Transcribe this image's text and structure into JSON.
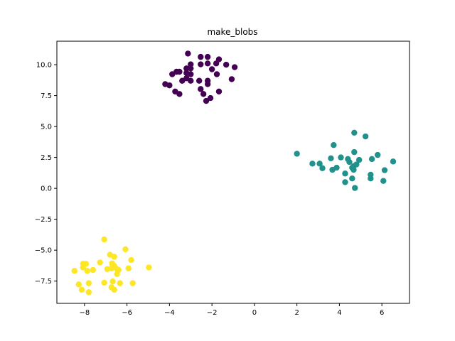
{
  "chart_data": {
    "type": "scatter",
    "title": "make_blobs",
    "xlabel": "",
    "ylabel": "",
    "xlim": [
      -9.3,
      7.3
    ],
    "ylim": [
      -9.3,
      11.9
    ],
    "xticks": [
      -8,
      -6,
      -4,
      -2,
      0,
      2,
      4,
      6
    ],
    "yticks": [
      -7.5,
      -5.0,
      -2.5,
      0.0,
      2.5,
      5.0,
      7.5,
      10.0
    ],
    "xtick_labels": [
      "−8",
      "−6",
      "−4",
      "−2",
      "0",
      "2",
      "4",
      "6"
    ],
    "ytick_labels": [
      "−7.5",
      "−5.0",
      "−2.5",
      "0.0",
      "2.5",
      "5.0",
      "7.5",
      "10.0"
    ],
    "grid": false,
    "legend": "none",
    "series": [
      {
        "color": "#440154",
        "points": [
          [
            -3.13,
            10.9
          ],
          [
            -2.53,
            10.63
          ],
          [
            -2.2,
            10.63
          ],
          [
            -1.67,
            10.43
          ],
          [
            -1.33,
            10.0
          ],
          [
            -0.93,
            9.8
          ],
          [
            -2.53,
            10.03
          ],
          [
            -2.2,
            10.1
          ],
          [
            -1.8,
            10.1
          ],
          [
            -3.0,
            10.03
          ],
          [
            -3.2,
            9.7
          ],
          [
            -3.0,
            9.7
          ],
          [
            -2.0,
            9.63
          ],
          [
            -1.77,
            9.23
          ],
          [
            -3.67,
            9.43
          ],
          [
            -3.87,
            9.23
          ],
          [
            -3.53,
            9.43
          ],
          [
            -3.2,
            9.33
          ],
          [
            -3.0,
            9.23
          ],
          [
            -3.2,
            8.9
          ],
          [
            -3.0,
            8.7
          ],
          [
            -3.4,
            8.7
          ],
          [
            -2.6,
            8.7
          ],
          [
            -2.2,
            8.7
          ],
          [
            -2.2,
            8.43
          ],
          [
            -1.07,
            8.83
          ],
          [
            -4.2,
            8.43
          ],
          [
            -4.0,
            8.33
          ],
          [
            -3.73,
            7.83
          ],
          [
            -3.53,
            7.63
          ],
          [
            -2.53,
            8.03
          ],
          [
            -2.4,
            7.63
          ],
          [
            -2.07,
            7.3
          ],
          [
            -2.27,
            7.07
          ],
          [
            -1.67,
            7.83
          ]
        ]
      },
      {
        "color": "#21918c",
        "points": [
          [
            4.7,
            4.5
          ],
          [
            5.23,
            4.2
          ],
          [
            3.73,
            3.5
          ],
          [
            2.0,
            2.8
          ],
          [
            4.7,
            2.93
          ],
          [
            5.8,
            2.7
          ],
          [
            3.6,
            2.43
          ],
          [
            4.07,
            2.5
          ],
          [
            4.4,
            2.37
          ],
          [
            4.93,
            2.3
          ],
          [
            5.53,
            2.37
          ],
          [
            6.53,
            2.17
          ],
          [
            2.73,
            2.0
          ],
          [
            3.07,
            2.0
          ],
          [
            4.47,
            2.13
          ],
          [
            4.67,
            1.8
          ],
          [
            4.8,
            1.93
          ],
          [
            3.2,
            1.63
          ],
          [
            3.67,
            1.5
          ],
          [
            3.87,
            1.67
          ],
          [
            4.6,
            1.67
          ],
          [
            4.67,
            1.5
          ],
          [
            6.13,
            1.47
          ],
          [
            4.27,
            1.2
          ],
          [
            5.47,
            1.1
          ],
          [
            5.47,
            0.8
          ],
          [
            4.6,
            0.8
          ],
          [
            4.27,
            0.5
          ],
          [
            6.07,
            0.6
          ],
          [
            4.73,
            0.03
          ]
        ]
      },
      {
        "color": "#fde725",
        "points": [
          [
            -7.07,
            -4.13
          ],
          [
            -6.07,
            -4.93
          ],
          [
            -6.8,
            -5.37
          ],
          [
            -6.6,
            -5.53
          ],
          [
            -5.8,
            -5.8
          ],
          [
            -7.27,
            -6.0
          ],
          [
            -6.7,
            -6.07
          ],
          [
            -6.6,
            -6.27
          ],
          [
            -6.47,
            -6.53
          ],
          [
            -8.07,
            -6.1
          ],
          [
            -7.93,
            -6.1
          ],
          [
            -8.07,
            -6.4
          ],
          [
            -7.87,
            -6.67
          ],
          [
            -7.6,
            -6.6
          ],
          [
            -6.93,
            -6.53
          ],
          [
            -6.73,
            -6.47
          ],
          [
            -6.4,
            -6.6
          ],
          [
            -6.47,
            -6.93
          ],
          [
            -5.93,
            -6.47
          ],
          [
            -4.97,
            -6.4
          ],
          [
            -8.47,
            -6.67
          ],
          [
            -8.27,
            -7.77
          ],
          [
            -8.13,
            -8.2
          ],
          [
            -7.8,
            -7.67
          ],
          [
            -7.8,
            -8.4
          ],
          [
            -7.07,
            -7.63
          ],
          [
            -6.67,
            -7.53
          ],
          [
            -6.33,
            -7.67
          ],
          [
            -5.73,
            -7.67
          ],
          [
            -6.73,
            -8.0
          ],
          [
            -6.6,
            -8.2
          ]
        ]
      }
    ]
  }
}
